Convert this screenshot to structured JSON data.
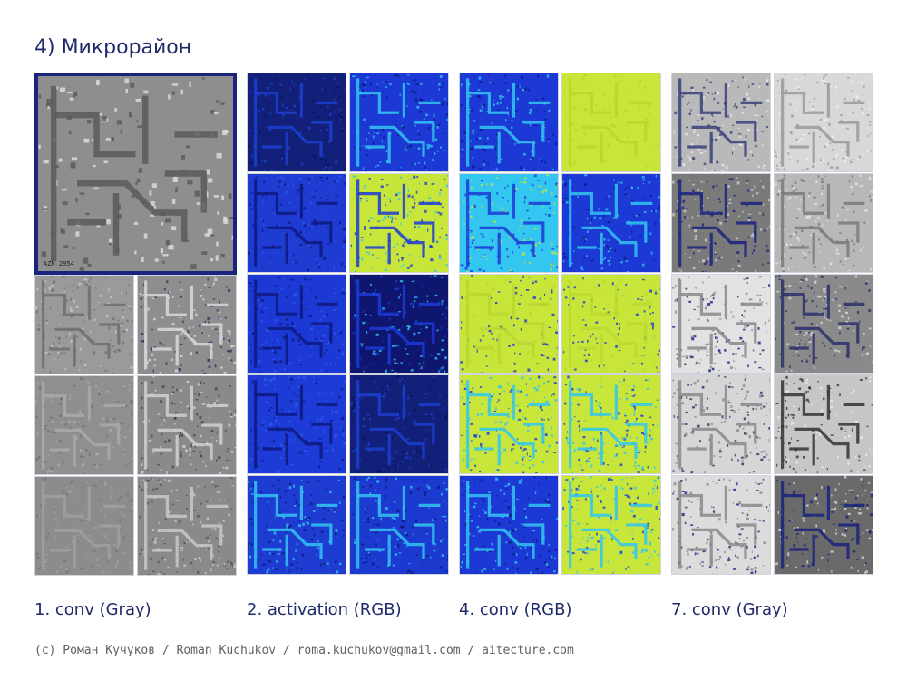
{
  "title": "4) Микрорайон",
  "columns": [
    {
      "caption": "1. conv (Gray)",
      "palette": "gray"
    },
    {
      "caption": "2. activation (RGB)",
      "palette": "blue"
    },
    {
      "caption": "4. conv (RGB)",
      "palette": "rgb"
    },
    {
      "caption": "7. conv (Gray)",
      "palette": "gray2"
    }
  ],
  "original_image": {
    "corner_text": "AZN 2954"
  },
  "footer": "(c) Роман Кучуков / Roman Kuchukov / roma.kuchukov@gmail.com / aitecture.com",
  "colors": {
    "title": "#1f2a6b",
    "dark_navy": "#1a237e",
    "blue": "#1c39d6",
    "cyan": "#33c6f0",
    "lime": "#c8e63a",
    "gray": "#8a8a8a"
  }
}
